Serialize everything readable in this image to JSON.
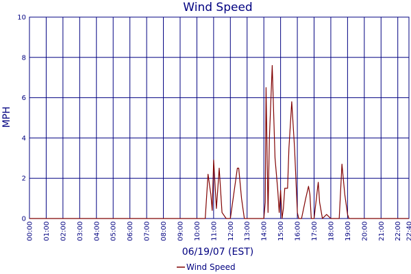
{
  "chart_data": {
    "type": "line",
    "title": "Wind Speed",
    "xlabel": "06/19/07 (EST)",
    "ylabel": "MPH",
    "xlim": [
      "00:00",
      "22:40"
    ],
    "ylim": [
      0,
      10
    ],
    "grid": true,
    "legend_position": "bottom-center",
    "x_ticks": [
      "00:00",
      "01:00",
      "02:00",
      "03:00",
      "04:00",
      "05:00",
      "06:00",
      "07:00",
      "08:00",
      "09:00",
      "10:00",
      "11:00",
      "12:00",
      "13:00",
      "14:00",
      "15:00",
      "16:00",
      "17:00",
      "18:00",
      "19:00",
      "20:00",
      "21:00",
      "22:00",
      "22:40"
    ],
    "y_ticks": [
      0,
      2,
      4,
      6,
      8,
      10
    ],
    "series": [
      {
        "name": "Wind Speed",
        "color": "#800000",
        "x": [
          "00:00",
          "10:30",
          "10:40",
          "10:50",
          "10:55",
          "11:00",
          "11:10",
          "11:15",
          "11:20",
          "11:30",
          "11:45",
          "12:00",
          "12:25",
          "12:30",
          "12:40",
          "12:50",
          "12:55",
          "13:00",
          "13:30",
          "14:00",
          "14:05",
          "14:08",
          "14:15",
          "14:20",
          "14:30",
          "14:40",
          "14:50",
          "14:55",
          "15:00",
          "15:05",
          "15:10",
          "15:15",
          "15:25",
          "15:30",
          "15:40",
          "15:50",
          "16:00",
          "16:05",
          "16:15",
          "16:30",
          "16:40",
          "16:45",
          "16:50",
          "17:00",
          "17:15",
          "17:20",
          "17:30",
          "17:45",
          "18:00",
          "18:10",
          "18:20",
          "18:30",
          "18:40",
          "18:50",
          "19:00",
          "19:05",
          "19:30",
          "20:00",
          "21:00",
          "22:00",
          "22:40"
        ],
        "y": [
          0,
          0,
          2.2,
          1.2,
          0.4,
          2.9,
          0.5,
          1.5,
          2.5,
          0.3,
          0,
          0,
          2.5,
          2.5,
          1.0,
          0,
          0,
          0,
          0,
          0,
          0.8,
          6.5,
          0.3,
          4.0,
          7.6,
          3.0,
          1.4,
          0.3,
          1.4,
          0,
          0.5,
          1.5,
          1.5,
          3.5,
          5.8,
          3.5,
          0.3,
          0,
          0,
          1.0,
          1.6,
          1.2,
          0,
          0,
          1.8,
          0.8,
          0,
          0.2,
          0,
          0,
          0,
          0,
          2.7,
          1.2,
          0.2,
          0,
          0,
          0,
          0,
          0,
          0
        ]
      }
    ]
  },
  "colors": {
    "line": "#800000",
    "grid": "#000080",
    "text": "#000080"
  }
}
